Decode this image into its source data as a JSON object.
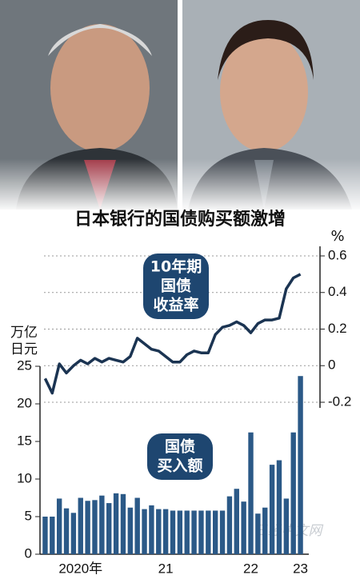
{
  "chart_data": {
    "type": "combo",
    "title": "日本银行的国债购买额激增",
    "y_axis_title": [
      "万亿",
      "日元"
    ],
    "y2_axis_title": "%",
    "categories": [
      null,
      null,
      null,
      null,
      null,
      "2020年",
      null,
      null,
      null,
      null,
      null,
      null,
      null,
      null,
      null,
      null,
      null,
      "21",
      null,
      null,
      null,
      null,
      null,
      null,
      null,
      null,
      null,
      null,
      null,
      "22",
      null,
      null,
      null,
      null,
      null,
      null,
      "23"
    ],
    "series": [
      {
        "type": "line",
        "axis": "y2",
        "color": "#1b3452",
        "values": [
          -0.07,
          -0.15,
          0.01,
          -0.04,
          0.0,
          0.03,
          0.01,
          0.04,
          0.02,
          0.04,
          0.03,
          0.02,
          0.05,
          0.15,
          0.12,
          0.09,
          0.08,
          0.05,
          0.02,
          0.02,
          0.06,
          0.08,
          0.07,
          0.07,
          0.17,
          0.21,
          0.22,
          0.24,
          0.22,
          0.18,
          0.23,
          0.25,
          0.25,
          0.26,
          0.42,
          0.48,
          0.5
        ]
      },
      {
        "type": "bar",
        "color": "#2b5987",
        "values": [
          5.0,
          5.0,
          7.4,
          6.1,
          5.5,
          7.5,
          7.1,
          7.2,
          7.8,
          6.8,
          8.1,
          8.0,
          6.2,
          7.5,
          6.0,
          6.5,
          6.0,
          6.0,
          5.8,
          5.8,
          5.8,
          5.8,
          5.8,
          5.8,
          5.8,
          5.8,
          7.7,
          8.7,
          7.0,
          16.2,
          5.4,
          6.2,
          11.9,
          12.5,
          7.4,
          16.2,
          23.7
        ]
      }
    ],
    "ylim": [
      0,
      25
    ],
    "yticks": [
      0,
      5,
      10,
      15,
      20,
      25
    ],
    "y2lim": [
      -0.2,
      0.6
    ],
    "y2ticks": [
      -0.2,
      0,
      0.2,
      0.4,
      0.6
    ],
    "grid": true,
    "annotations": [
      {
        "lines": [
          "10年期",
          "国债",
          "收益率"
        ]
      },
      {
        "lines": [
          "国债",
          "买入额"
        ]
      }
    ],
    "watermark": "日经中文网"
  }
}
